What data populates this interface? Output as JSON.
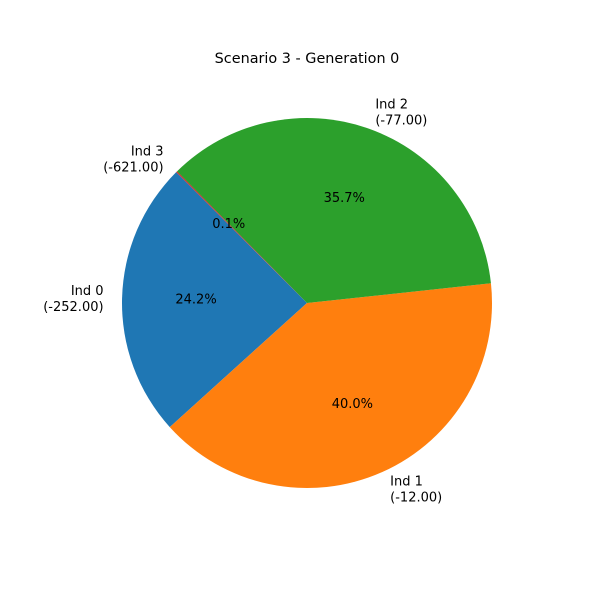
{
  "chart_data": {
    "type": "pie",
    "title": "Scenario 3 - Generation 0",
    "start_angle_deg": 135,
    "direction": "counterclockwise",
    "slices": [
      {
        "label": "Ind 0",
        "sublabel": "(-252.00)",
        "percent": 24.2,
        "pct_text": "24.2%",
        "color": "#1f77b4"
      },
      {
        "label": "Ind 1",
        "sublabel": "(-12.00)",
        "percent": 40.0,
        "pct_text": "40.0%",
        "color": "#ff7f0e"
      },
      {
        "label": "Ind 2",
        "sublabel": "(-77.00)",
        "percent": 35.7,
        "pct_text": "35.7%",
        "color": "#2ca02c"
      },
      {
        "label": "Ind 3",
        "sublabel": "(-621.00)",
        "percent": 0.1,
        "pct_text": "0.1%",
        "color": "#d62728"
      }
    ]
  }
}
